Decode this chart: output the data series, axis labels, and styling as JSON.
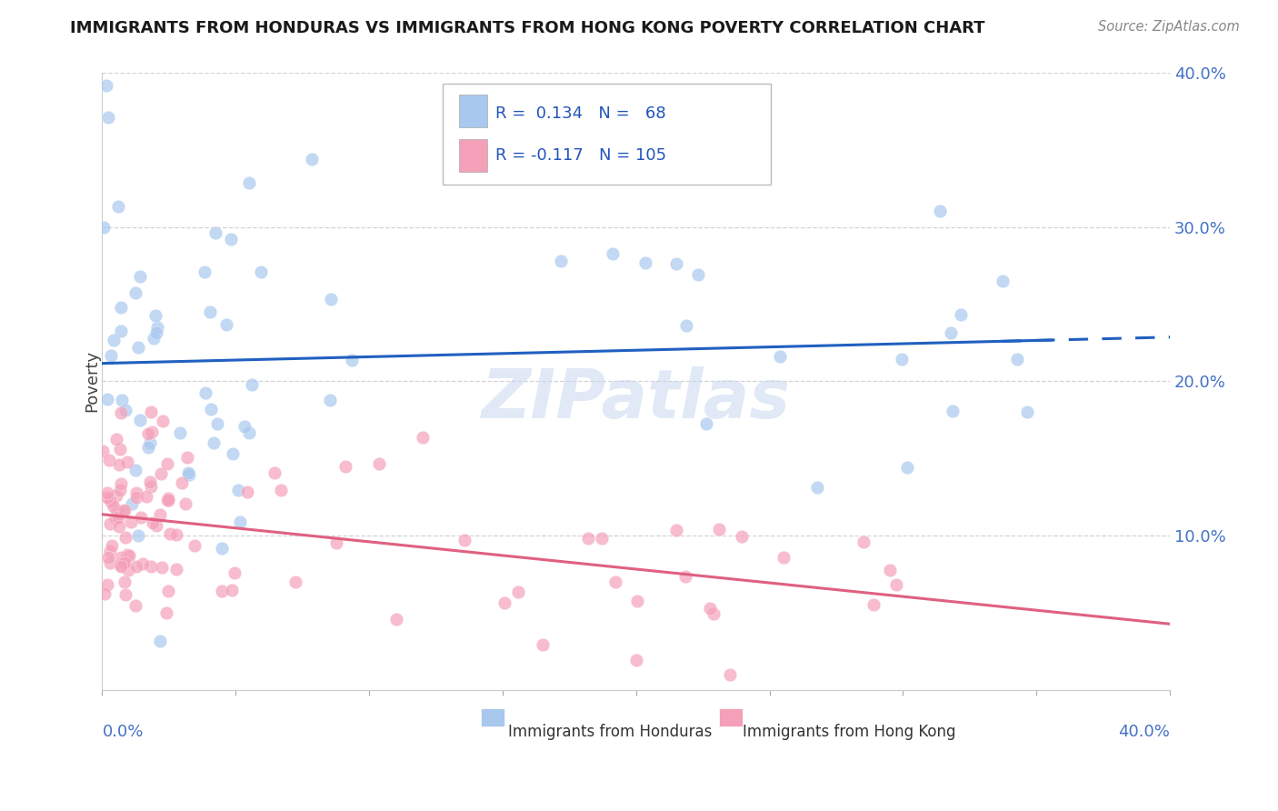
{
  "title": "IMMIGRANTS FROM HONDURAS VS IMMIGRANTS FROM HONG KONG POVERTY CORRELATION CHART",
  "source": "Source: ZipAtlas.com",
  "ylabel": "Poverty",
  "xlim": [
    0,
    0.4
  ],
  "ylim": [
    0,
    0.4
  ],
  "color_honduras": "#A8C8EE",
  "color_hong_kong": "#F4A0B8",
  "line_color_honduras": "#2060C0",
  "line_color_hong_kong": "#E06080",
  "watermark": "ZIPatlas",
  "background_color": "#FFFFFF",
  "grid_color": "#C8C8C8"
}
